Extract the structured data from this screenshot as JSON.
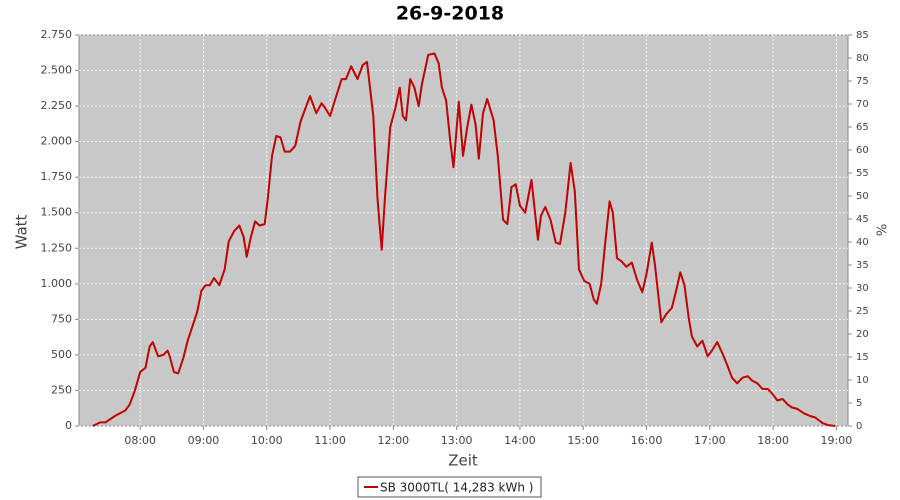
{
  "chart_data": {
    "type": "line",
    "title": "26-9-2018",
    "xlabel": "Zeit",
    "ylabel": "Watt",
    "y2label": "%",
    "x": [
      "07:15",
      "07:22",
      "07:27",
      "07:36",
      "07:46",
      "07:50",
      "07:55",
      "08:00",
      "08:05",
      "08:09",
      "08:12",
      "08:17",
      "08:22",
      "08:26",
      "08:28",
      "08:32",
      "08:36",
      "08:41",
      "08:45",
      "08:49",
      "08:54",
      "08:58",
      "09:02",
      "09:06",
      "09:10",
      "09:15",
      "09:20",
      "09:24",
      "09:29",
      "09:34",
      "09:38",
      "09:41",
      "09:45",
      "09:49",
      "09:53",
      "09:58",
      "10:01",
      "10:05",
      "10:09",
      "10:13",
      "10:17",
      "10:22",
      "10:27",
      "10:32",
      "10:36",
      "10:41",
      "10:47",
      "10:52",
      "10:55",
      "11:00",
      "11:05",
      "11:11",
      "11:15",
      "11:20",
      "11:26",
      "11:31",
      "11:35",
      "11:41",
      "11:45",
      "11:49",
      "11:52",
      "11:57",
      "12:02",
      "12:06",
      "12:09",
      "12:12",
      "12:16",
      "12:20",
      "12:24",
      "12:27",
      "12:33",
      "12:39",
      "12:43",
      "12:46",
      "12:50",
      "12:54",
      "12:57",
      "13:02",
      "13:06",
      "13:10",
      "13:14",
      "13:18",
      "13:21",
      "13:25",
      "13:29",
      "13:35",
      "13:39",
      "13:44",
      "13:48",
      "13:52",
      "13:56",
      "14:00",
      "14:05",
      "14:11",
      "14:15",
      "14:17",
      "14:20",
      "14:24",
      "14:29",
      "14:34",
      "14:38",
      "14:43",
      "14:48",
      "14:52",
      "14:56",
      "15:01",
      "15:06",
      "15:10",
      "15:13",
      "15:17",
      "15:21",
      "15:25",
      "15:28",
      "15:32",
      "15:36",
      "15:41",
      "15:46",
      "15:51",
      "15:56",
      "16:00",
      "16:05",
      "16:08",
      "16:14",
      "16:19",
      "16:24",
      "16:28",
      "16:32",
      "16:36",
      "16:40",
      "16:43",
      "16:48",
      "16:53",
      "16:58",
      "17:02",
      "17:07",
      "17:12",
      "17:17",
      "17:21",
      "17:26",
      "17:31",
      "17:36",
      "17:40",
      "17:45",
      "17:50",
      "17:55",
      "17:59",
      "18:04",
      "18:09",
      "18:14",
      "18:18",
      "18:23",
      "18:29",
      "18:35",
      "18:40",
      "18:47",
      "18:53",
      "18:59"
    ],
    "series": [
      {
        "name": "SB 3000TL( 14,283 kWh )",
        "color": "#c00000",
        "values": [
          0,
          25,
          25,
          70,
          110,
          150,
          250,
          380,
          410,
          560,
          590,
          490,
          500,
          530,
          490,
          380,
          370,
          480,
          600,
          690,
          800,
          950,
          990,
          990,
          1040,
          990,
          1100,
          1300,
          1370,
          1410,
          1330,
          1190,
          1330,
          1440,
          1410,
          1420,
          1600,
          1900,
          2040,
          2030,
          1930,
          1930,
          1970,
          2140,
          2220,
          2320,
          2200,
          2270,
          2240,
          2180,
          2300,
          2440,
          2440,
          2530,
          2440,
          2540,
          2560,
          2180,
          1600,
          1240,
          1600,
          2100,
          2240,
          2380,
          2180,
          2150,
          2440,
          2380,
          2250,
          2400,
          2610,
          2620,
          2550,
          2380,
          2290,
          2000,
          1820,
          2280,
          1900,
          2100,
          2260,
          2120,
          1880,
          2200,
          2300,
          2150,
          1900,
          1450,
          1420,
          1680,
          1700,
          1550,
          1500,
          1730,
          1450,
          1310,
          1480,
          1540,
          1450,
          1290,
          1280,
          1500,
          1850,
          1650,
          1100,
          1020,
          1000,
          890,
          860,
          1000,
          1300,
          1580,
          1500,
          1180,
          1160,
          1120,
          1150,
          1030,
          940,
          1070,
          1290,
          1130,
          730,
          790,
          830,
          950,
          1080,
          990,
          760,
          630,
          560,
          600,
          490,
          530,
          590,
          510,
          420,
          340,
          300,
          340,
          350,
          320,
          300,
          260,
          260,
          230,
          180,
          190,
          150,
          130,
          120,
          90,
          70,
          60,
          20,
          5,
          0
        ]
      }
    ],
    "xlim": [
      "07:02",
      "19:11"
    ],
    "xticks": [
      "08:00",
      "09:00",
      "10:00",
      "11:00",
      "12:00",
      "13:00",
      "14:00",
      "15:00",
      "16:00",
      "17:00",
      "18:00",
      "19:00"
    ],
    "ylim": [
      0,
      2750
    ],
    "yticks": [
      0,
      250,
      500,
      750,
      {
        "value": 1000,
        "label": "1.000"
      },
      {
        "value": 1250,
        "label": "1.250"
      },
      {
        "value": 1500,
        "label": "1.500"
      },
      {
        "value": 1750,
        "label": "1.750"
      },
      {
        "value": 2000,
        "label": "2.000"
      },
      {
        "value": 2250,
        "label": "2.250"
      },
      {
        "value": 2500,
        "label": "2.500"
      },
      {
        "value": 2750,
        "label": "2.750"
      }
    ],
    "y2lim": [
      0,
      85
    ],
    "y2ticks": [
      0,
      5,
      10,
      15,
      20,
      25,
      30,
      35,
      40,
      45,
      50,
      55,
      60,
      65,
      70,
      75,
      80,
      85
    ],
    "grid": true
  }
}
